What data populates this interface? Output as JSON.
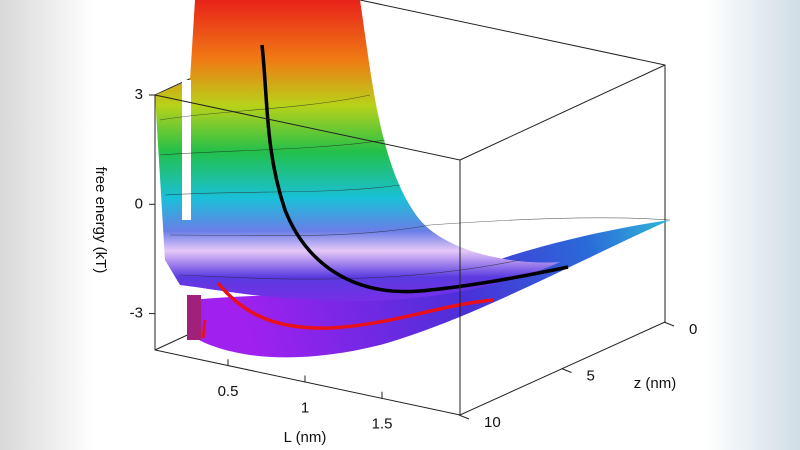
{
  "chart_data": {
    "type": "surface3d",
    "xlabel": "L (nm)",
    "ylabel": "z (nm)",
    "zlabel": "free energy (kT)",
    "xlim": [
      0,
      2
    ],
    "xticks": [
      0.5,
      1,
      1.5
    ],
    "ylim": [
      10,
      0
    ],
    "yticks": [
      0,
      5,
      10
    ],
    "zlim": [
      -4,
      3
    ],
    "zticks": [
      -3,
      0,
      3
    ],
    "colormap": "rainbow"
  }
}
